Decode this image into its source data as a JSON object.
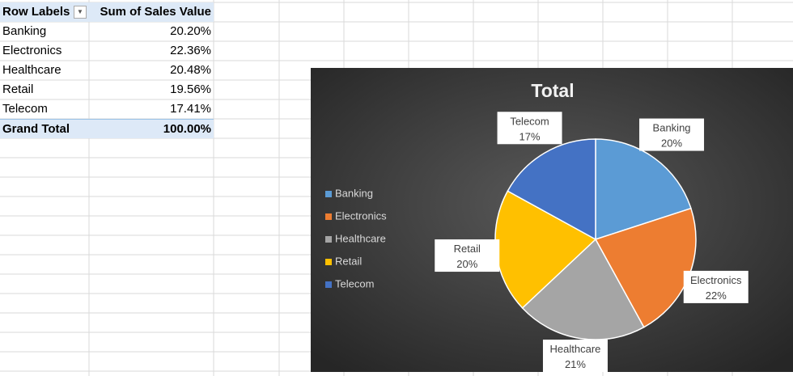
{
  "table": {
    "header": [
      "Row Labels",
      "Sum of Sales Value"
    ],
    "rows": [
      [
        "Banking",
        "20.20%"
      ],
      [
        "Electronics",
        "22.36%"
      ],
      [
        "Healthcare",
        "20.48%"
      ],
      [
        "Retail",
        "19.56%"
      ],
      [
        "Telecom",
        "17.41%"
      ]
    ],
    "total": [
      "Grand Total",
      "100.00%"
    ]
  },
  "chart_data": {
    "type": "pie",
    "title": "Total",
    "categories": [
      "Banking",
      "Electronics",
      "Healthcare",
      "Retail",
      "Telecom"
    ],
    "values": [
      20,
      22,
      21,
      20,
      17
    ],
    "value_labels": [
      "20%",
      "22%",
      "21%",
      "20%",
      "17%"
    ],
    "colors": [
      "#5b9bd5",
      "#ed7d31",
      "#a5a5a5",
      "#ffc000",
      "#4472c4"
    ],
    "legend": "left"
  }
}
